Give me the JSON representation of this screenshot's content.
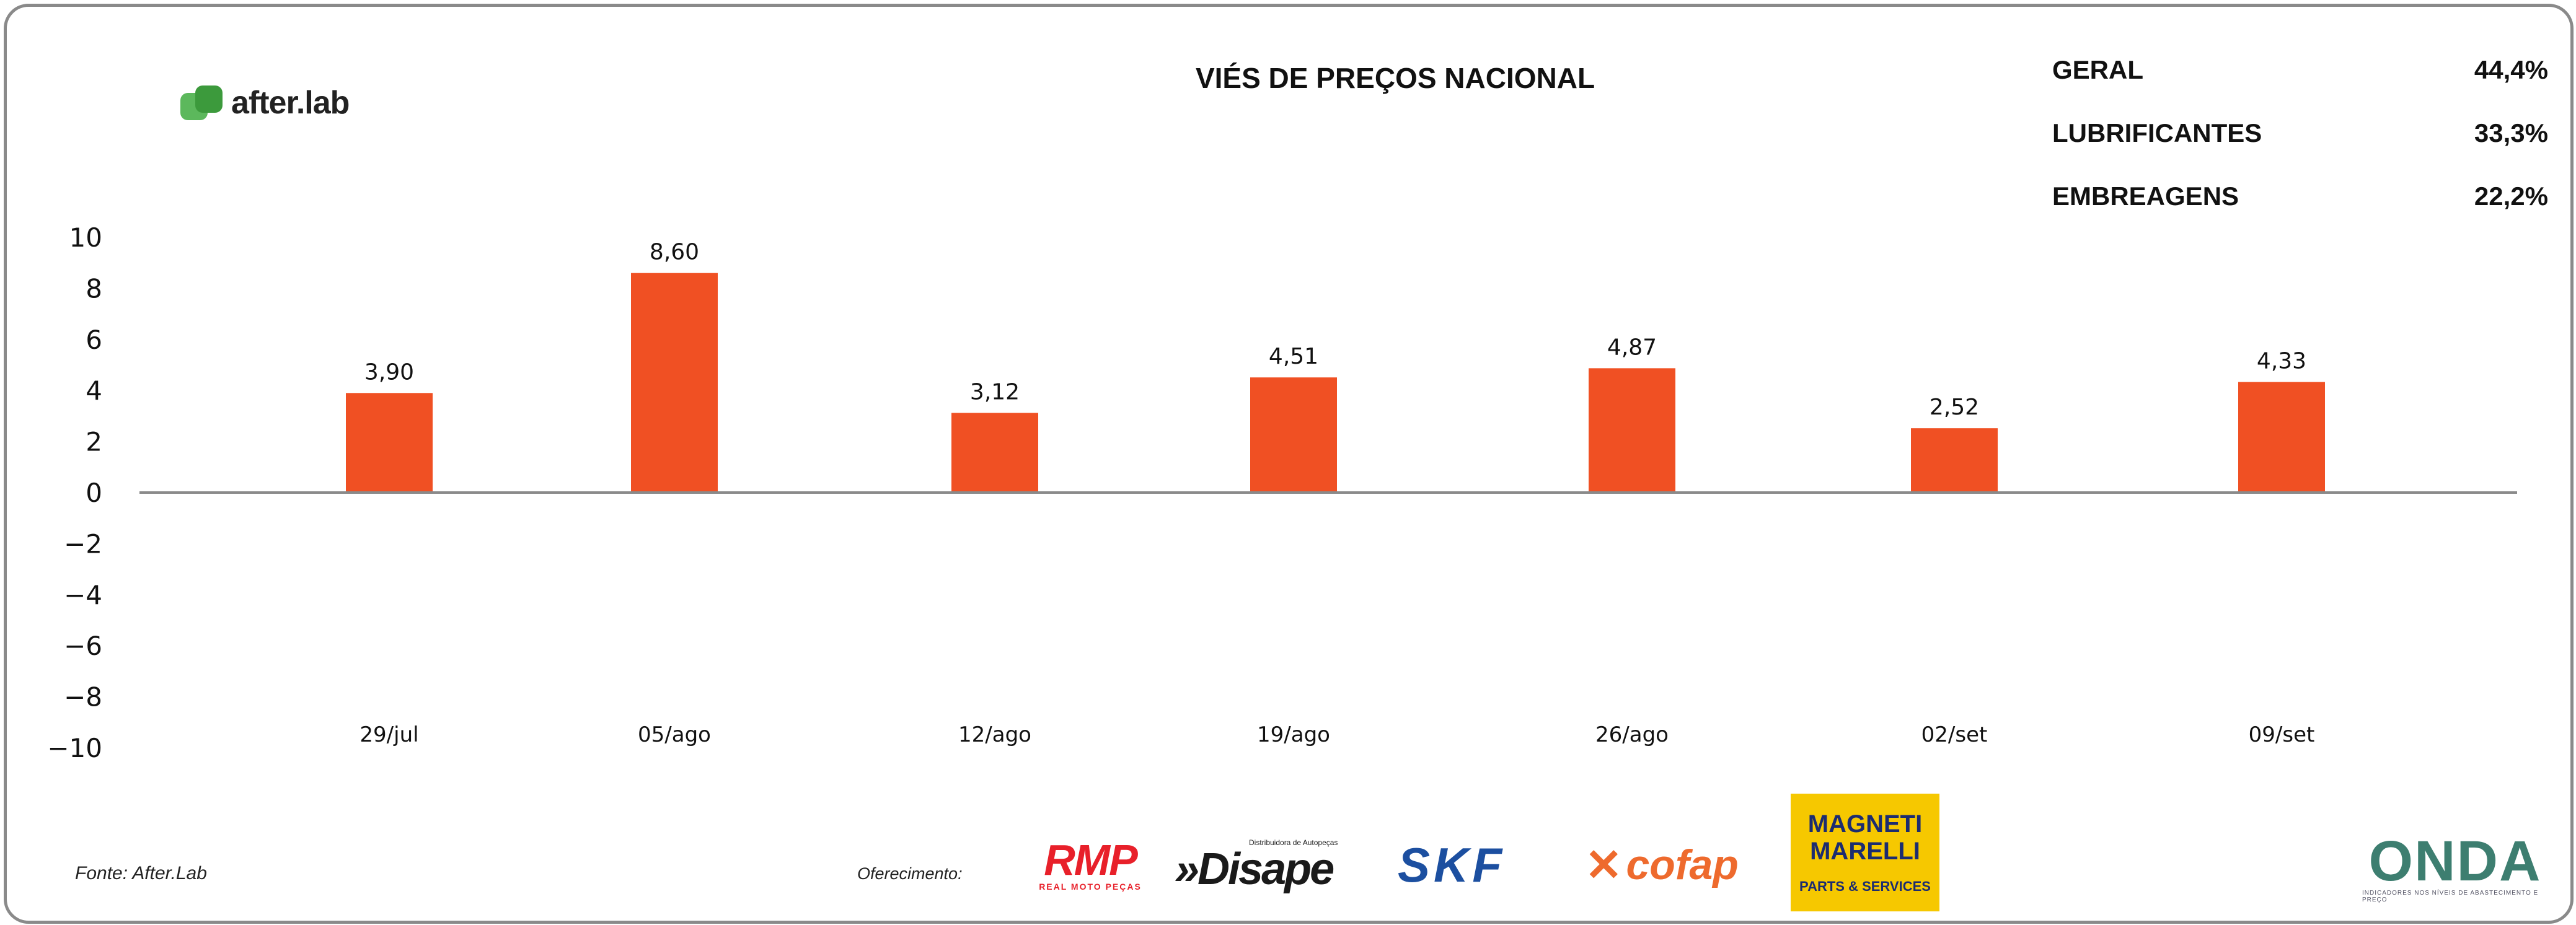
{
  "title": "VIÉS DE PREÇOS NACIONAL",
  "brand": {
    "name": "after.lab"
  },
  "stats": [
    {
      "label": "GERAL",
      "value": "44,4%"
    },
    {
      "label": "LUBRIFICANTES",
      "value": "33,3%"
    },
    {
      "label": "EMBREAGENS",
      "value": "22,2%"
    }
  ],
  "footer": {
    "source": "Fonte: After.Lab",
    "offering": "Oferecimento:"
  },
  "sponsors": {
    "rmp": {
      "name": "RMP",
      "tagline": "REAL MOTO PEÇAS"
    },
    "disape": {
      "name": "»Disape",
      "tagline": "Distribuidora de Autopeças"
    },
    "skf": {
      "name": "SKF"
    },
    "cofap": {
      "name": "cofap"
    },
    "magneti": {
      "name": "MAGNETI MARELLI",
      "tagline": "PARTS & SERVICES"
    },
    "onda": {
      "name": "ONDA",
      "tagline": "INDICADORES NOS NÍVEIS DE ABASTECIMENTO E PREÇO"
    }
  },
  "colors": {
    "bar": "#f05023",
    "axis": "#8a8a8a",
    "text": "#111111"
  },
  "chart_data": {
    "type": "bar",
    "categories": [
      "29/jul",
      "05/ago",
      "12/ago",
      "19/ago",
      "26/ago",
      "02/set",
      "09/set"
    ],
    "values": [
      3.9,
      8.6,
      3.12,
      4.51,
      4.87,
      2.52,
      4.33
    ],
    "value_labels": [
      "3,90",
      "8,60",
      "3,12",
      "4,51",
      "4,87",
      "2,52",
      "4,33"
    ],
    "yticks": [
      10,
      8,
      6,
      4,
      2,
      0,
      -2,
      -4,
      -6,
      -8,
      -10
    ],
    "ylim": [
      -10,
      10
    ],
    "grid": false,
    "legend": "none"
  }
}
